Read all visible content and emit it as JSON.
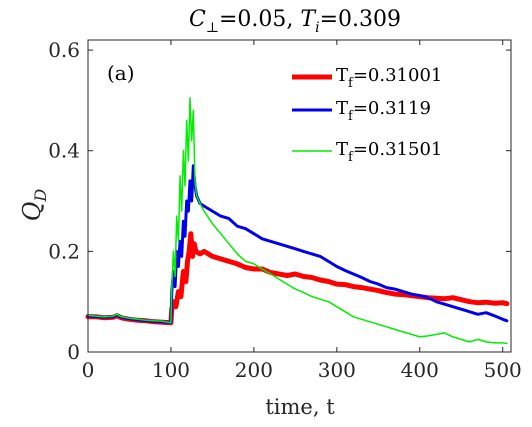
{
  "chart_data": {
    "type": "line",
    "title": "C⊥ =0.05, Ti =0.309",
    "title_parts": {
      "c_symbol": "C",
      "c_sub": "⊥",
      "c_value": "=0.05, ",
      "t_symbol": "T",
      "t_sub": "i",
      "t_value": "=0.309"
    },
    "annotation": "(a)",
    "xlabel": "time, t",
    "ylabel": "Q_D",
    "ylabel_parts": {
      "symbol": "Q",
      "sub": "D"
    },
    "xlim": [
      0,
      510
    ],
    "ylim": [
      0,
      0.62
    ],
    "xticks": [
      0,
      100,
      200,
      300,
      400,
      500
    ],
    "yticks": [
      0,
      0.2,
      0.4,
      0.6
    ],
    "xtick_labels": [
      "0",
      "100",
      "200",
      "300",
      "400",
      "500"
    ],
    "ytick_labels": [
      "0",
      "0.2",
      "0.4",
      "0.6"
    ],
    "grid": false,
    "legend_position": "top-right",
    "series": [
      {
        "name": "Tf=0.31001",
        "label_base": "T",
        "label_sub": "f",
        "label_value": "=0.31001",
        "color": "#ff0000",
        "width": 5,
        "x": [
          0,
          10,
          20,
          30,
          35,
          40,
          50,
          60,
          70,
          80,
          90,
          100,
          101,
          103,
          106,
          109,
          112,
          115,
          118,
          120,
          122,
          124,
          126,
          128,
          130,
          135,
          140,
          150,
          160,
          170,
          180,
          190,
          200,
          210,
          220,
          230,
          240,
          250,
          260,
          270,
          280,
          290,
          300,
          310,
          320,
          330,
          340,
          350,
          360,
          370,
          380,
          390,
          400,
          410,
          420,
          430,
          440,
          450,
          460,
          470,
          480,
          490,
          500,
          505
        ],
        "y": [
          0.07,
          0.07,
          0.068,
          0.069,
          0.072,
          0.068,
          0.065,
          0.063,
          0.062,
          0.06,
          0.059,
          0.058,
          0.085,
          0.1,
          0.09,
          0.12,
          0.11,
          0.16,
          0.14,
          0.18,
          0.2,
          0.235,
          0.19,
          0.215,
          0.2,
          0.195,
          0.2,
          0.19,
          0.185,
          0.18,
          0.175,
          0.168,
          0.165,
          0.165,
          0.158,
          0.155,
          0.152,
          0.155,
          0.15,
          0.148,
          0.143,
          0.14,
          0.135,
          0.134,
          0.13,
          0.128,
          0.125,
          0.122,
          0.118,
          0.115,
          0.114,
          0.112,
          0.11,
          0.108,
          0.107,
          0.106,
          0.108,
          0.104,
          0.1,
          0.098,
          0.099,
          0.097,
          0.098,
          0.096
        ]
      },
      {
        "name": "Tf=0.3119",
        "label_base": "T",
        "label_sub": "f",
        "label_value": "=0.3119",
        "color": "#0000ee",
        "width": 3,
        "x": [
          0,
          10,
          20,
          30,
          35,
          40,
          50,
          60,
          70,
          80,
          90,
          100,
          101,
          103,
          105,
          107,
          109,
          111,
          113,
          115,
          117,
          119,
          121,
          123,
          125,
          127,
          129,
          131,
          135,
          140,
          150,
          160,
          170,
          180,
          190,
          200,
          210,
          220,
          230,
          240,
          250,
          260,
          270,
          280,
          290,
          300,
          310,
          320,
          330,
          340,
          350,
          360,
          370,
          380,
          390,
          400,
          410,
          420,
          430,
          440,
          450,
          460,
          470,
          480,
          490,
          500,
          505
        ],
        "y": [
          0.072,
          0.07,
          0.069,
          0.07,
          0.074,
          0.069,
          0.066,
          0.064,
          0.062,
          0.061,
          0.06,
          0.058,
          0.12,
          0.16,
          0.13,
          0.2,
          0.17,
          0.22,
          0.19,
          0.26,
          0.23,
          0.3,
          0.28,
          0.34,
          0.3,
          0.37,
          0.33,
          0.31,
          0.295,
          0.29,
          0.28,
          0.27,
          0.265,
          0.25,
          0.245,
          0.235,
          0.225,
          0.22,
          0.215,
          0.21,
          0.205,
          0.2,
          0.195,
          0.19,
          0.18,
          0.17,
          0.162,
          0.155,
          0.148,
          0.14,
          0.135,
          0.128,
          0.125,
          0.12,
          0.115,
          0.112,
          0.108,
          0.1,
          0.095,
          0.09,
          0.085,
          0.08,
          0.075,
          0.078,
          0.072,
          0.065,
          0.062
        ]
      },
      {
        "name": "Tf=0.31501",
        "label_base": "T",
        "label_sub": "f",
        "label_value": "=0.31501",
        "color": "#00ee00",
        "width": 1.5,
        "x": [
          0,
          10,
          20,
          30,
          35,
          40,
          50,
          60,
          70,
          80,
          90,
          100,
          101,
          103,
          105,
          107,
          109,
          111,
          113,
          115,
          117,
          119,
          121,
          123,
          125,
          127,
          129,
          131,
          135,
          140,
          150,
          160,
          170,
          180,
          190,
          200,
          210,
          220,
          230,
          240,
          250,
          260,
          270,
          280,
          290,
          300,
          310,
          320,
          330,
          340,
          350,
          360,
          370,
          380,
          390,
          400,
          410,
          420,
          430,
          440,
          450,
          460,
          470,
          480,
          490,
          500,
          505
        ],
        "y": [
          0.073,
          0.071,
          0.07,
          0.071,
          0.075,
          0.07,
          0.067,
          0.065,
          0.063,
          0.062,
          0.061,
          0.058,
          0.13,
          0.2,
          0.15,
          0.27,
          0.22,
          0.35,
          0.28,
          0.4,
          0.33,
          0.46,
          0.38,
          0.505,
          0.42,
          0.48,
          0.34,
          0.31,
          0.295,
          0.28,
          0.255,
          0.235,
          0.215,
          0.195,
          0.18,
          0.175,
          0.165,
          0.155,
          0.145,
          0.135,
          0.125,
          0.118,
          0.11,
          0.105,
          0.1,
          0.09,
          0.08,
          0.07,
          0.065,
          0.06,
          0.055,
          0.05,
          0.045,
          0.04,
          0.035,
          0.03,
          0.032,
          0.035,
          0.038,
          0.03,
          0.025,
          0.02,
          0.025,
          0.02,
          0.018,
          0.018,
          0.017
        ]
      }
    ]
  }
}
